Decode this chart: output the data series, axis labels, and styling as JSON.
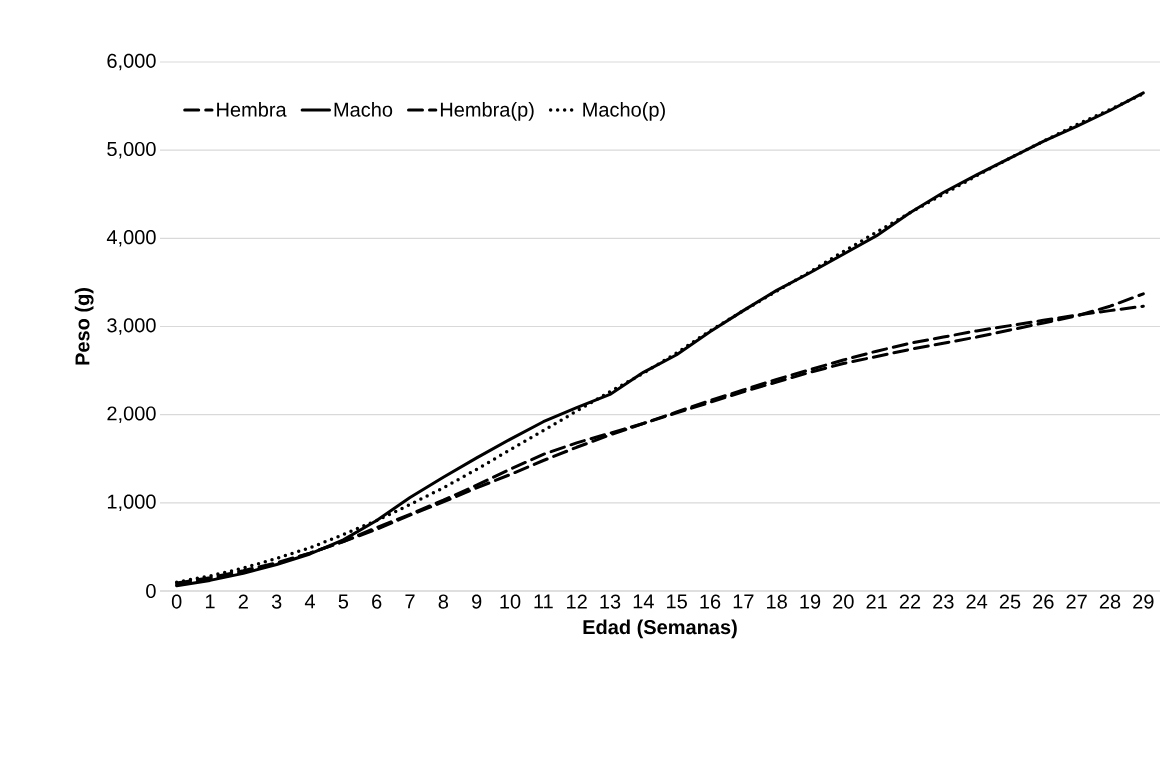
{
  "chart_data": {
    "type": "line",
    "xlabel": "Edad (Semanas)",
    "ylabel": "Peso (g)",
    "categories": [
      "0",
      "1",
      "2",
      "3",
      "4",
      "5",
      "6",
      "7",
      "8",
      "9",
      "10",
      "11",
      "12",
      "13",
      "14",
      "15",
      "16",
      "17",
      "18",
      "19",
      "20",
      "21",
      "22",
      "23",
      "24",
      "25",
      "26",
      "27",
      "28",
      "29"
    ],
    "series": [
      {
        "name": "Hembra",
        "color": "#000000",
        "line_style": "dashed",
        "values": [
          70,
          130,
          210,
          310,
          430,
          560,
          720,
          870,
          1030,
          1200,
          1380,
          1550,
          1680,
          1790,
          1900,
          2020,
          2140,
          2260,
          2370,
          2480,
          2580,
          2660,
          2740,
          2810,
          2880,
          2960,
          3040,
          3120,
          3230,
          3370
        ]
      },
      {
        "name": "Macho",
        "color": "#000000",
        "line_style": "solid",
        "values": [
          60,
          120,
          200,
          300,
          420,
          580,
          800,
          1060,
          1290,
          1510,
          1720,
          1920,
          2080,
          2230,
          2480,
          2680,
          2940,
          3180,
          3410,
          3610,
          3820,
          4030,
          4290,
          4520,
          4720,
          4910,
          5100,
          5270,
          5450,
          5650
        ]
      },
      {
        "name": "Hembra(p)",
        "color": "#000000",
        "line_style": "dashed",
        "values": [
          90,
          150,
          230,
          320,
          430,
          560,
          700,
          860,
          1010,
          1170,
          1320,
          1480,
          1630,
          1770,
          1900,
          2030,
          2160,
          2280,
          2400,
          2510,
          2620,
          2720,
          2810,
          2880,
          2950,
          3010,
          3070,
          3130,
          3180,
          3230
        ]
      },
      {
        "name": "Macho(p)",
        "color": "#000000",
        "line_style": "dotted",
        "values": [
          100,
          170,
          260,
          370,
          490,
          640,
          800,
          980,
          1170,
          1380,
          1600,
          1820,
          2040,
          2260,
          2470,
          2700,
          2950,
          3180,
          3400,
          3620,
          3850,
          4070,
          4290,
          4500,
          4710,
          4910,
          5100,
          5290,
          5460,
          5640
        ]
      }
    ],
    "ylim": [
      0,
      6000
    ],
    "yticks": [
      {
        "value": 0,
        "label": "0"
      },
      {
        "value": 1000,
        "label": "1,000"
      },
      {
        "value": 2000,
        "label": "2,000"
      },
      {
        "value": 3000,
        "label": "3,000"
      },
      {
        "value": 4000,
        "label": "4,000"
      },
      {
        "value": 5000,
        "label": "5,000"
      },
      {
        "value": 6000,
        "label": "6,000"
      }
    ],
    "grid": "y",
    "legend": "top",
    "marker": "none"
  }
}
